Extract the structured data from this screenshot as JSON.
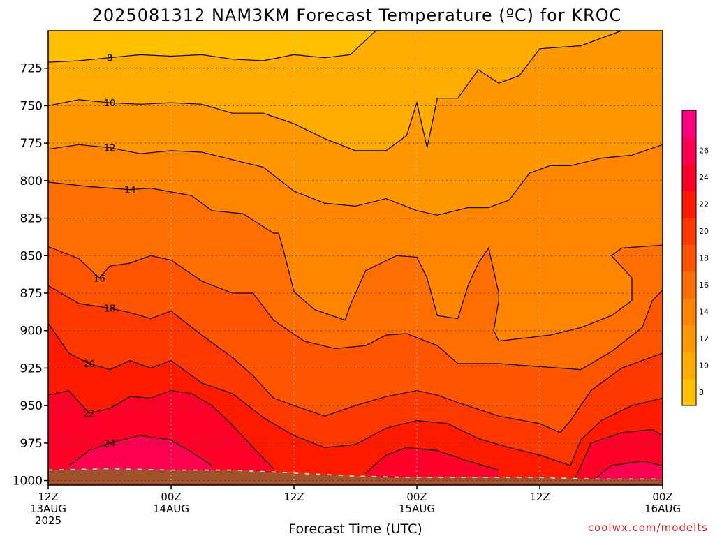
{
  "chart_data": {
    "type": "contour",
    "title": "2025081312 NAM3KM Forecast Temperature (ºC) for KROC",
    "xlabel": "Forecast Time (UTC)",
    "ylabel": "",
    "x_ticks": [
      {
        "value": 0,
        "label": "12Z",
        "sub": "13AUG",
        "sub2": "2025"
      },
      {
        "value": 12,
        "label": "00Z",
        "sub": "14AUG",
        "sub2": ""
      },
      {
        "value": 24,
        "label": "12Z",
        "sub": "",
        "sub2": ""
      },
      {
        "value": 36,
        "label": "00Z",
        "sub": "15AUG",
        "sub2": ""
      },
      {
        "value": 48,
        "label": "12Z",
        "sub": "",
        "sub2": ""
      },
      {
        "value": 60,
        "label": "00Z",
        "sub": "16AUG",
        "sub2": ""
      }
    ],
    "x_range_hours": [
      0,
      60
    ],
    "y_ticks": [
      725,
      750,
      775,
      800,
      825,
      850,
      875,
      900,
      925,
      950,
      975,
      1000
    ],
    "y_tick_labels": [
      "725",
      "750",
      "775",
      "800",
      "825",
      "850",
      "875",
      "900",
      "925",
      "950",
      "975",
      "1000"
    ],
    "y_range_hpa": [
      700,
      1003
    ],
    "grid": true,
    "colorbar": {
      "levels": [
        6,
        8,
        10,
        12,
        14,
        16,
        18,
        20,
        22,
        24,
        26,
        28
      ],
      "labels": [
        "8",
        "10",
        "12",
        "14",
        "16",
        "18",
        "20",
        "22",
        "24",
        "26"
      ],
      "colors": [
        "#ffc000",
        "#ffac00",
        "#ff9800",
        "#ff8400",
        "#ff6e00",
        "#ff5400",
        "#ff3800",
        "#ff1a00",
        "#ff0028",
        "#ff0050",
        "#ff0080"
      ]
    },
    "isotherms": [
      {
        "level": 8,
        "label": "8",
        "points": [
          [
            0,
            721
          ],
          [
            3,
            720
          ],
          [
            6,
            718
          ],
          [
            9,
            716
          ],
          [
            12,
            717
          ],
          [
            15,
            716
          ],
          [
            18,
            719
          ],
          [
            21,
            720
          ],
          [
            24,
            716
          ],
          [
            27,
            718
          ],
          [
            29.5,
            716
          ],
          [
            32,
            700
          ]
        ]
      },
      {
        "level": 10,
        "label": "10",
        "points": [
          [
            0,
            750
          ],
          [
            3,
            746
          ],
          [
            6,
            748
          ],
          [
            9,
            749
          ],
          [
            12,
            748
          ],
          [
            15,
            749
          ],
          [
            18,
            755
          ],
          [
            21,
            755
          ],
          [
            24,
            762
          ],
          [
            27,
            772
          ],
          [
            30,
            780
          ],
          [
            33,
            780
          ],
          [
            35,
            770
          ],
          [
            36,
            748
          ],
          [
            37,
            778
          ],
          [
            38,
            745
          ],
          [
            40,
            745
          ],
          [
            42,
            726
          ],
          [
            44,
            735
          ],
          [
            46,
            730
          ],
          [
            48,
            712
          ],
          [
            52,
            710
          ],
          [
            56,
            700
          ]
        ]
      },
      {
        "level": 12,
        "label": "12",
        "points": [
          [
            0,
            779
          ],
          [
            3,
            776
          ],
          [
            6,
            778
          ],
          [
            9,
            782
          ],
          [
            12,
            780
          ],
          [
            15,
            781
          ],
          [
            18,
            786
          ],
          [
            21,
            791
          ],
          [
            24,
            807
          ],
          [
            27,
            815
          ],
          [
            30,
            817
          ],
          [
            33,
            812
          ],
          [
            36,
            820
          ],
          [
            38,
            823
          ],
          [
            41,
            818
          ],
          [
            43,
            818
          ],
          [
            45,
            813
          ],
          [
            47,
            795
          ],
          [
            49,
            790
          ],
          [
            51,
            790
          ],
          [
            54,
            785
          ],
          [
            57,
            783
          ],
          [
            60,
            776
          ]
        ]
      },
      {
        "level": 14,
        "label": "14",
        "points": [
          [
            0,
            801
          ],
          [
            4,
            804
          ],
          [
            8,
            806
          ],
          [
            10,
            805
          ],
          [
            14,
            810
          ],
          [
            16,
            820
          ],
          [
            19,
            822
          ],
          [
            22,
            835
          ],
          [
            22.5,
            835
          ],
          [
            23,
            847
          ],
          [
            24,
            874
          ],
          [
            26,
            886
          ],
          [
            29,
            893
          ],
          [
            29.5,
            883
          ],
          [
            31,
            860
          ],
          [
            34,
            850
          ],
          [
            36,
            851
          ],
          [
            37,
            865
          ],
          [
            38,
            890
          ],
          [
            40,
            892
          ],
          [
            41,
            870
          ],
          [
            42,
            855
          ],
          [
            43,
            845
          ],
          [
            44,
            875
          ],
          [
            44,
            880
          ],
          [
            43.5,
            900
          ],
          [
            44,
            907
          ],
          [
            49,
            903
          ],
          [
            52,
            898
          ],
          [
            55,
            890
          ],
          [
            57,
            880
          ],
          [
            57,
            865
          ],
          [
            55,
            850
          ],
          [
            56,
            845
          ],
          [
            60,
            843
          ]
        ]
      },
      {
        "level": 16,
        "label": "16",
        "points": [
          [
            0,
            844
          ],
          [
            3,
            852
          ],
          [
            5,
            865
          ],
          [
            6,
            857
          ],
          [
            8,
            855
          ],
          [
            10,
            850
          ],
          [
            12,
            853
          ],
          [
            15,
            867
          ],
          [
            18,
            875
          ],
          [
            20,
            875
          ],
          [
            22,
            893
          ],
          [
            25,
            907
          ],
          [
            28,
            912
          ],
          [
            31,
            910
          ],
          [
            33,
            903
          ],
          [
            35,
            902
          ],
          [
            38,
            910
          ],
          [
            40,
            922
          ],
          [
            44,
            922
          ],
          [
            48,
            924
          ],
          [
            52,
            926
          ],
          [
            55,
            914
          ],
          [
            58,
            898
          ],
          [
            59,
            880
          ],
          [
            60,
            873
          ]
        ]
      },
      {
        "level": 18,
        "label": "18",
        "points": [
          [
            0,
            870
          ],
          [
            3,
            882
          ],
          [
            6,
            885
          ],
          [
            8,
            888
          ],
          [
            10,
            892
          ],
          [
            12,
            887
          ],
          [
            15,
            903
          ],
          [
            18,
            918
          ],
          [
            20,
            930
          ],
          [
            22,
            945
          ],
          [
            24,
            950
          ],
          [
            27,
            957
          ],
          [
            30,
            950
          ],
          [
            33,
            944
          ],
          [
            36,
            940
          ],
          [
            38,
            943
          ],
          [
            40,
            948
          ],
          [
            44,
            957
          ],
          [
            48,
            962
          ],
          [
            50,
            968
          ],
          [
            51,
            960
          ],
          [
            53,
            940
          ],
          [
            56,
            925
          ],
          [
            60,
            915
          ]
        ]
      },
      {
        "level": 20,
        "label": "20",
        "points": [
          [
            0,
            895
          ],
          [
            2,
            915
          ],
          [
            4,
            922
          ],
          [
            6,
            926
          ],
          [
            8,
            920
          ],
          [
            10,
            925
          ],
          [
            12,
            920
          ],
          [
            15,
            935
          ],
          [
            18,
            942
          ],
          [
            21,
            958
          ],
          [
            24,
            970
          ],
          [
            27,
            978
          ],
          [
            30,
            976
          ],
          [
            33,
            965
          ],
          [
            36,
            960
          ],
          [
            39,
            962
          ],
          [
            42,
            972
          ],
          [
            45,
            978
          ],
          [
            48,
            983
          ],
          [
            51,
            990
          ],
          [
            52,
            973
          ],
          [
            54,
            960
          ],
          [
            57,
            950
          ],
          [
            60,
            945
          ]
        ]
      },
      {
        "level": 22,
        "label": "22",
        "points": [
          [
            0,
            943
          ],
          [
            2,
            940
          ],
          [
            4,
            955
          ],
          [
            6,
            952
          ],
          [
            8,
            944
          ],
          [
            10,
            945
          ],
          [
            12,
            940
          ],
          [
            14,
            942
          ],
          [
            16,
            950
          ],
          [
            18,
            963
          ],
          [
            20,
            978
          ],
          [
            22,
            992
          ]
        ]
      },
      {
        "level": 22,
        "label": "",
        "points": [
          [
            31,
            995
          ],
          [
            33,
            983
          ],
          [
            35,
            978
          ],
          [
            38,
            980
          ],
          [
            41,
            987
          ],
          [
            44,
            993
          ]
        ]
      },
      {
        "level": 22,
        "label": "",
        "points": [
          [
            51.5,
            998
          ],
          [
            53,
            975
          ],
          [
            56,
            968
          ],
          [
            59,
            966
          ],
          [
            60,
            970
          ]
        ]
      },
      {
        "level": 24,
        "label": "24",
        "points": [
          [
            2,
            990
          ],
          [
            4,
            980
          ],
          [
            6,
            975
          ],
          [
            9,
            970
          ],
          [
            12,
            973
          ],
          [
            14,
            981
          ],
          [
            16,
            990
          ]
        ]
      },
      {
        "level": 24,
        "label": "",
        "points": [
          [
            53.5,
            998
          ],
          [
            55,
            990
          ],
          [
            58,
            987
          ],
          [
            60,
            990
          ]
        ]
      }
    ],
    "terrain_top": [
      [
        0,
        993
      ],
      [
        6,
        992
      ],
      [
        12,
        993
      ],
      [
        18,
        993
      ],
      [
        24,
        995
      ],
      [
        30,
        997
      ],
      [
        36,
        998
      ],
      [
        42,
        998
      ],
      [
        48,
        998
      ],
      [
        54,
        999
      ],
      [
        60,
        999
      ]
    ]
  },
  "credit": "coolwx.com/modelts"
}
